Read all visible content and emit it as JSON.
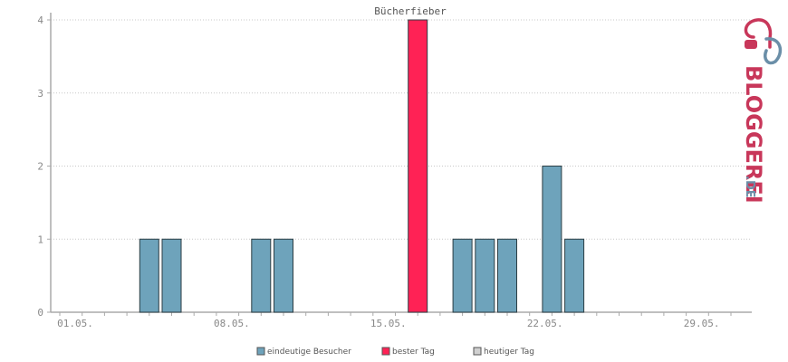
{
  "chart_data": {
    "type": "bar",
    "title": "Bücherfieber",
    "xlabel": "",
    "ylabel": "",
    "ylim": [
      0,
      4
    ],
    "yticks": [
      0,
      1,
      2,
      3,
      4
    ],
    "xlim_days": [
      1,
      31
    ],
    "xticks": [
      {
        "day": 1,
        "label": "01.05."
      },
      {
        "day": 8,
        "label": "08.05."
      },
      {
        "day": 15,
        "label": "15.05."
      },
      {
        "day": 22,
        "label": "22.05."
      },
      {
        "day": 29,
        "label": "29.05."
      }
    ],
    "grid": true,
    "legend_position": "bottom",
    "series": [
      {
        "name": "eindeutige Besucher",
        "color": "#6ea3bb",
        "points": [
          {
            "day": 5,
            "value": 1
          },
          {
            "day": 6,
            "value": 1
          },
          {
            "day": 10,
            "value": 1
          },
          {
            "day": 11,
            "value": 1
          },
          {
            "day": 19,
            "value": 1
          },
          {
            "day": 20,
            "value": 1
          },
          {
            "day": 21,
            "value": 1
          },
          {
            "day": 23,
            "value": 2
          },
          {
            "day": 24,
            "value": 1
          }
        ]
      },
      {
        "name": "bester Tag",
        "color": "#ff2255",
        "points": [
          {
            "day": 17,
            "value": 4
          }
        ]
      },
      {
        "name": "heutiger Tag",
        "color": "#d0d0d0",
        "points": []
      }
    ]
  },
  "logo": {
    "text": "BLOGGEREI",
    "suffix": ".DE",
    "colors": {
      "primary": "#c8375a",
      "secondary": "#6b8fa8"
    },
    "icon": "bloggerei-logo-icon"
  }
}
